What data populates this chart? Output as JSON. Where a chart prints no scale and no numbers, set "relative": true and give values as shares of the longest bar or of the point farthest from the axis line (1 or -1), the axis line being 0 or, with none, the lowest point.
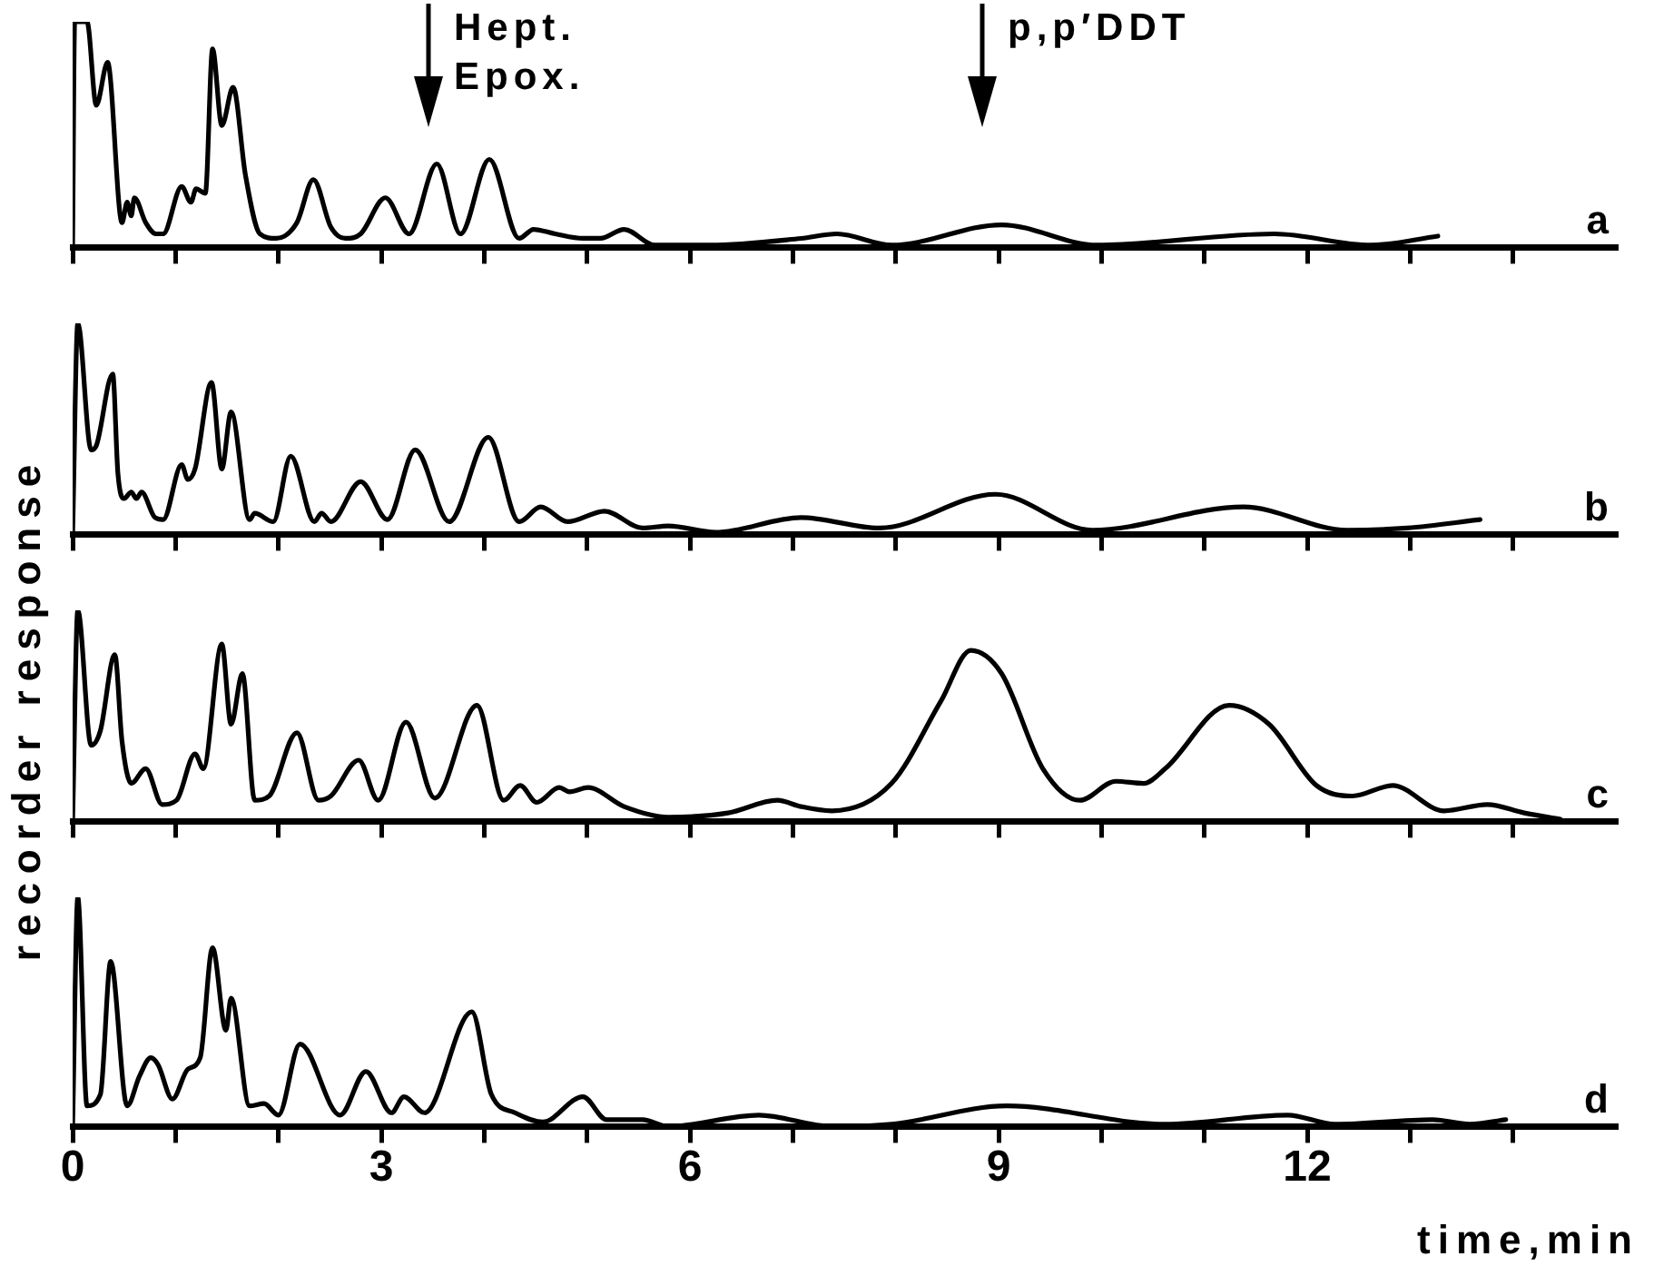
{
  "chart_data": [
    {
      "type": "line",
      "relative": true,
      "marker": "none",
      "ylabel": "recorder response",
      "tick_labels": false,
      "xlim": [
        0,
        15
      ],
      "xticks": [
        0,
        {
          "value": 1,
          "label": null
        },
        {
          "value": 2,
          "label": null
        },
        3,
        {
          "value": 4,
          "label": null
        },
        {
          "value": 5,
          "label": null
        },
        6,
        {
          "value": 7,
          "label": null
        },
        {
          "value": 8,
          "label": null
        },
        9,
        {
          "value": 10,
          "label": null
        },
        {
          "value": 11,
          "label": null
        },
        12,
        {
          "value": 13,
          "label": null
        },
        {
          "value": 14,
          "label": null
        }
      ],
      "annotations": [
        "Hept. Epox.",
        "p,p′DDT"
      ],
      "series": [
        {
          "name": "a",
          "color": "#000000",
          "x": [
            0,
            0.02,
            0.14,
            0.23,
            0.34,
            0.48,
            0.53,
            0.57,
            0.6,
            0.71,
            0.81,
            0.88,
            1.06,
            1.15,
            1.2,
            1.29,
            1.36,
            1.45,
            1.56,
            1.68,
            1.82,
            1.98,
            2.18,
            2.34,
            2.51,
            2.65,
            2.8,
            3.04,
            3.27,
            3.54,
            3.77,
            4.05,
            4.34,
            4.48,
            4.69,
            4.96,
            5.13,
            5.36,
            5.66,
            6.19,
            7.08,
            7.43,
            7.96,
            9.03,
            9.96,
            11.68,
            12.62,
            13.27
          ],
          "values": [
            0,
            1,
            1,
            0.63,
            0.82,
            0.11,
            0.2,
            0.14,
            0.22,
            0.11,
            0.06,
            0.06,
            0.27,
            0.2,
            0.26,
            0.24,
            0.88,
            0.54,
            0.71,
            0.32,
            0.06,
            0.04,
            0.11,
            0.3,
            0.09,
            0.04,
            0.06,
            0.22,
            0.06,
            0.37,
            0.06,
            0.39,
            0.04,
            0.08,
            0.06,
            0.04,
            0.04,
            0.08,
            0.01,
            0.01,
            0.04,
            0.06,
            0.01,
            0.1,
            0.01,
            0.06,
            0.01,
            0.05
          ]
        }
      ]
    },
    {
      "type": "line",
      "relative": true,
      "marker": "none",
      "tick_labels": false,
      "xlim": [
        0,
        15
      ],
      "xticks": [
        0,
        {
          "value": 1,
          "label": null
        },
        {
          "value": 2,
          "label": null
        },
        3,
        {
          "value": 4,
          "label": null
        },
        {
          "value": 5,
          "label": null
        },
        6,
        {
          "value": 7,
          "label": null
        },
        {
          "value": 8,
          "label": null
        },
        9,
        {
          "value": 10,
          "label": null
        },
        {
          "value": 11,
          "label": null
        },
        12,
        {
          "value": 13,
          "label": null
        },
        {
          "value": 14,
          "label": null
        }
      ],
      "series": [
        {
          "name": "b",
          "color": "#000000",
          "x": [
            0,
            0.05,
            0.18,
            0.23,
            0.39,
            0.44,
            0.5,
            0.57,
            0.62,
            0.67,
            0.8,
            0.88,
            1.06,
            1.12,
            1.19,
            1.35,
            1.45,
            1.54,
            1.72,
            1.77,
            1.95,
            2.12,
            2.35,
            2.42,
            2.51,
            2.8,
            3.06,
            3.33,
            3.66,
            4.04,
            4.34,
            4.55,
            4.81,
            5.17,
            5.54,
            5.79,
            6.25,
            7.08,
            7.84,
            8.97,
            9.91,
            11.38,
            12.39,
            12.97,
            13.68
          ],
          "values": [
            0,
            1,
            0.4,
            0.42,
            0.76,
            0.29,
            0.17,
            0.2,
            0.17,
            0.2,
            0.08,
            0.07,
            0.33,
            0.26,
            0.31,
            0.72,
            0.31,
            0.58,
            0.07,
            0.1,
            0.06,
            0.37,
            0.06,
            0.1,
            0.06,
            0.25,
            0.07,
            0.4,
            0.06,
            0.46,
            0.06,
            0.13,
            0.06,
            0.11,
            0.03,
            0.04,
            0.01,
            0.08,
            0.03,
            0.19,
            0.02,
            0.13,
            0.02,
            0.03,
            0.07
          ]
        }
      ]
    },
    {
      "type": "line",
      "relative": true,
      "marker": "none",
      "tick_labels": false,
      "xlim": [
        0,
        15
      ],
      "xticks": [
        0,
        {
          "value": 1,
          "label": null
        },
        {
          "value": 2,
          "label": null
        },
        3,
        {
          "value": 4,
          "label": null
        },
        {
          "value": 5,
          "label": null
        },
        6,
        {
          "value": 7,
          "label": null
        },
        {
          "value": 8,
          "label": null
        },
        9,
        {
          "value": 10,
          "label": null
        },
        {
          "value": 11,
          "label": null
        },
        12,
        {
          "value": 13,
          "label": null
        },
        {
          "value": 14,
          "label": null
        }
      ],
      "series": [
        {
          "name": "c",
          "color": "#000000",
          "x": [
            0,
            0.05,
            0.18,
            0.27,
            0.41,
            0.48,
            0.57,
            0.71,
            0.87,
            1.01,
            1.19,
            1.27,
            1.45,
            1.54,
            1.65,
            1.77,
            1.91,
            2.18,
            2.39,
            2.51,
            2.78,
            2.97,
            3.24,
            3.52,
            3.93,
            4.19,
            4.35,
            4.51,
            4.73,
            4.83,
            5.01,
            5.36,
            5.79,
            6.37,
            6.85,
            7.08,
            7.38,
            7.96,
            8.44,
            8.73,
            9.03,
            9.43,
            9.79,
            10.14,
            10.41,
            10.62,
            11.24,
            11.63,
            12.09,
            12.44,
            12.83,
            13.33,
            13.75,
            14.11,
            14.46
          ],
          "values": [
            0,
            1,
            0.36,
            0.43,
            0.79,
            0.38,
            0.18,
            0.25,
            0.08,
            0.1,
            0.32,
            0.25,
            0.84,
            0.46,
            0.7,
            0.1,
            0.12,
            0.42,
            0.1,
            0.12,
            0.29,
            0.1,
            0.47,
            0.11,
            0.55,
            0.1,
            0.17,
            0.09,
            0.16,
            0.14,
            0.16,
            0.07,
            0.02,
            0.04,
            0.1,
            0.07,
            0.05,
            0.18,
            0.57,
            0.81,
            0.7,
            0.25,
            0.1,
            0.19,
            0.18,
            0.25,
            0.55,
            0.46,
            0.17,
            0.12,
            0.17,
            0.05,
            0.08,
            0.04,
            0.01
          ]
        }
      ]
    },
    {
      "type": "line",
      "relative": true,
      "marker": "none",
      "tick_labels": "x",
      "xlabel": "time,min",
      "xlim": [
        0,
        15
      ],
      "xticks": [
        0,
        {
          "value": 1,
          "label": null
        },
        {
          "value": 2,
          "label": null
        },
        3,
        {
          "value": 4,
          "label": null
        },
        {
          "value": 5,
          "label": null
        },
        6,
        {
          "value": 7,
          "label": null
        },
        {
          "value": 8,
          "label": null
        },
        9,
        {
          "value": 10,
          "label": null
        },
        {
          "value": 11,
          "label": null
        },
        12,
        {
          "value": 13,
          "label": null
        },
        {
          "value": 14,
          "label": null
        }
      ],
      "series": [
        {
          "name": "d",
          "color": "#000000",
          "x": [
            0,
            0.05,
            0.14,
            0.27,
            0.37,
            0.53,
            0.65,
            0.76,
            0.83,
            0.97,
            1.12,
            1.24,
            1.36,
            1.49,
            1.54,
            1.72,
            1.86,
            2,
            2.21,
            2.6,
            2.85,
            3.1,
            3.22,
            3.42,
            3.88,
            4.07,
            4.3,
            4.57,
            4.96,
            5.19,
            5.54,
            5.79,
            6.67,
            7.38,
            7.96,
            9.08,
            10.62,
            11.81,
            12.27,
            13.22,
            13.58,
            13.93
          ],
          "values": [
            0,
            1,
            0.09,
            0.14,
            0.72,
            0.09,
            0.22,
            0.3,
            0.27,
            0.12,
            0.25,
            0.3,
            0.78,
            0.42,
            0.56,
            0.09,
            0.1,
            0.05,
            0.36,
            0.05,
            0.24,
            0.06,
            0.13,
            0.06,
            0.5,
            0.14,
            0.06,
            0.02,
            0.13,
            0.03,
            0.03,
            0,
            0.05,
            0,
            0.01,
            0.09,
            0.01,
            0.05,
            0.01,
            0.03,
            0.01,
            0.03
          ]
        }
      ]
    }
  ]
}
